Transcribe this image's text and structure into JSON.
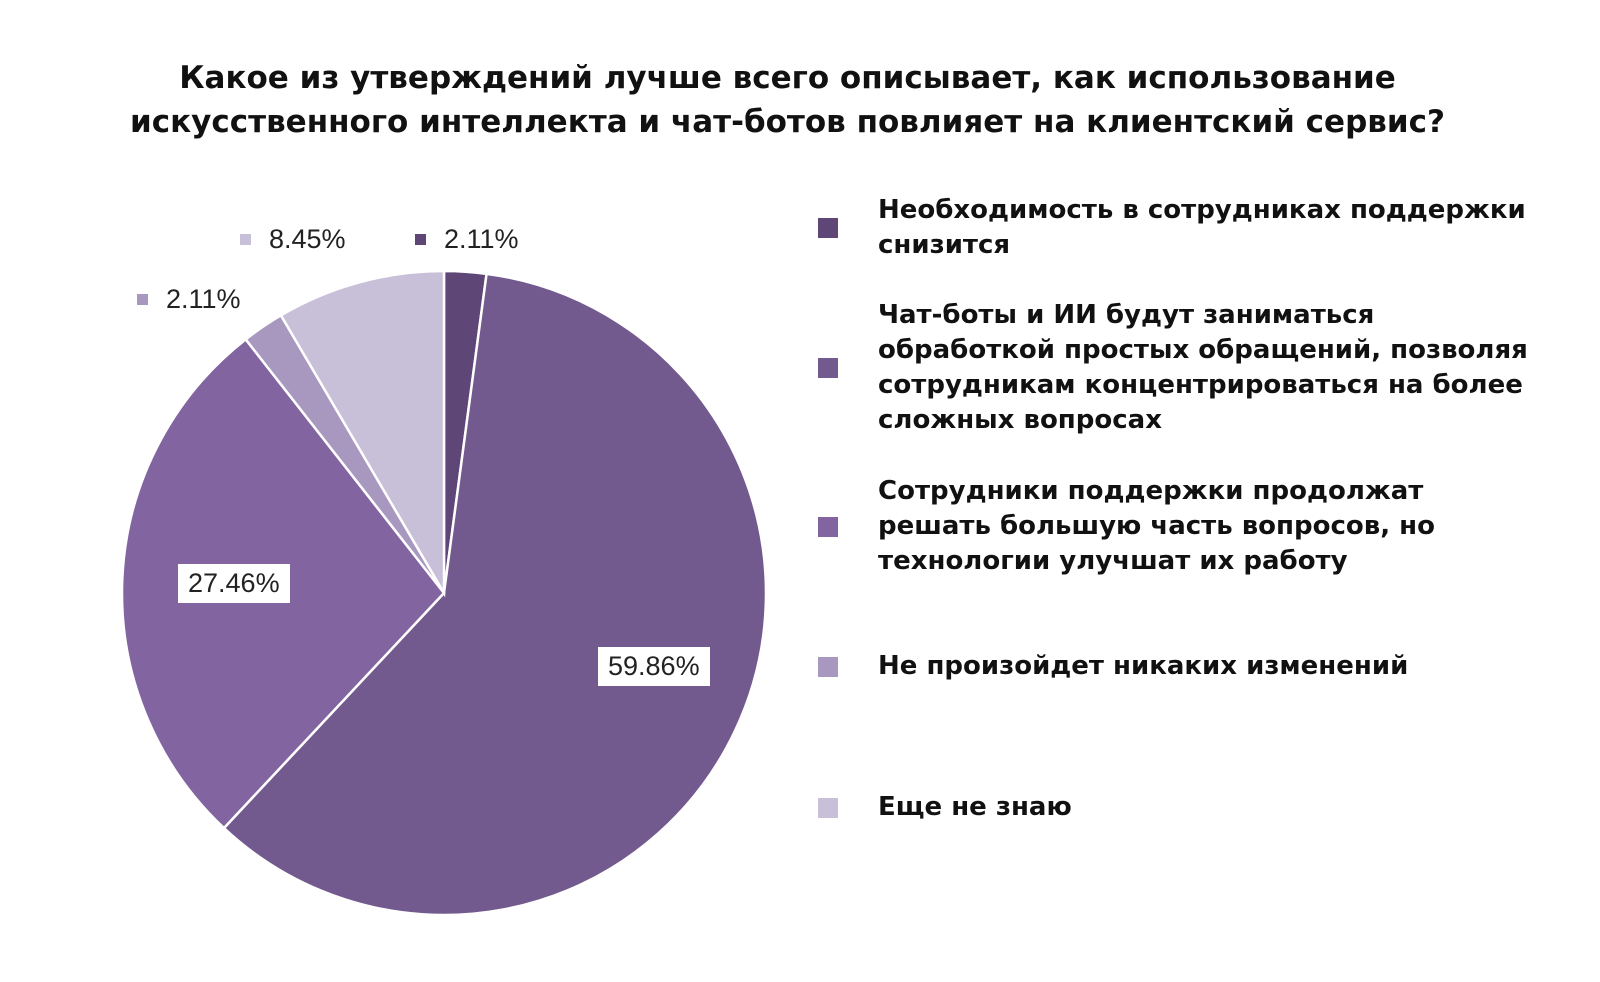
{
  "chart_data": {
    "type": "pie",
    "title": "Какое из утверждений лучше всего описывает, как использование искусственного интеллекта и чат-ботов повлияет на клиентский сервис?",
    "title_lines": [
      "Какое из утверждений лучше всего описывает, как использование",
      "искусственного интеллекта и чат-ботов повлияет на клиентский сервис?"
    ],
    "legend_position": "right",
    "slices": [
      {
        "label": "Необходимость в сотрудниках поддержки снизится",
        "value": 2.11,
        "display": "2.11%",
        "color": "#5e4676"
      },
      {
        "label": "Чат-боты и ИИ будут заниматься обработкой простых обращений, позволяя сотрудникам концентрироваться на более сложных вопросах",
        "value": 59.86,
        "display": "59.86%",
        "color": "#72598e"
      },
      {
        "label": "Сотрудники поддержки продолжат решать большую часть вопросов, но технологии улучшат их работу",
        "value": 27.46,
        "display": "27.46%",
        "color": "#8265a0"
      },
      {
        "label": "Не произойдет никаких изменений",
        "value": 2.11,
        "display": "2.11%",
        "color": "#a898c0"
      },
      {
        "label": "Еще не знаю",
        "value": 8.45,
        "display": "8.45%",
        "color": "#c8bfd8"
      }
    ]
  }
}
